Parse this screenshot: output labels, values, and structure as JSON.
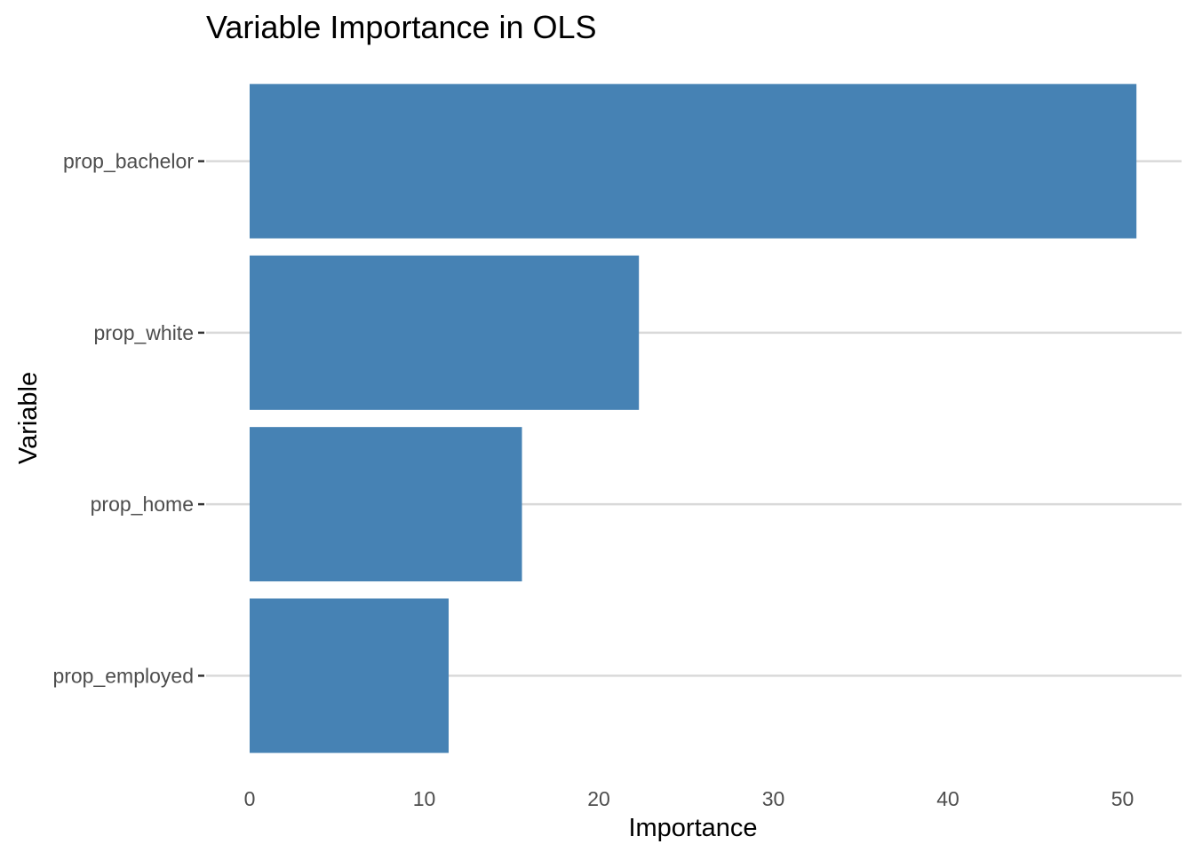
{
  "chart_data": {
    "type": "bar",
    "orientation": "horizontal",
    "title": "Variable Importance in OLS",
    "xlabel": "Importance",
    "ylabel": "Variable",
    "categories": [
      "prop_bachelor",
      "prop_white",
      "prop_home",
      "prop_employed"
    ],
    "values": [
      50.8,
      22.3,
      15.6,
      11.4
    ],
    "xlim": [
      0,
      52.5
    ],
    "xticks": [
      0,
      10,
      20,
      30,
      40,
      50
    ],
    "grid": "horizontal-major",
    "legend": "none",
    "bar_color": "#4682B4"
  }
}
